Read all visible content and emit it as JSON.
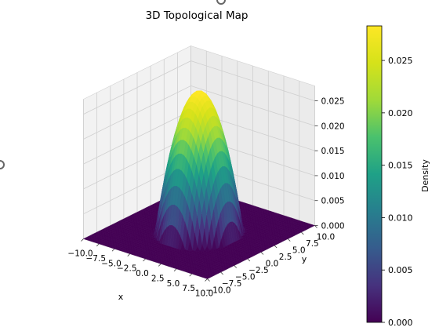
{
  "chart_data": {
    "type": "surface",
    "title": "3D Topological Map",
    "xlabel": "x",
    "ylabel": "y",
    "zlabel": "",
    "xlim": [
      -10,
      10
    ],
    "ylim": [
      -10,
      10
    ],
    "zlim": [
      0,
      0.028
    ],
    "x_ticks": [
      "−10.0",
      "−7.5",
      "−5.0",
      "−2.5",
      "0.0",
      "2.5",
      "5.0",
      "7.5",
      "10.0"
    ],
    "y_ticks": [
      "−10.0",
      "−7.5",
      "−5.0",
      "−2.5",
      "0.0",
      "2.5",
      "5.0",
      "7.5",
      "10.0"
    ],
    "z_ticks": [
      "0.000",
      "0.005",
      "0.010",
      "0.015",
      "0.020",
      "0.025"
    ],
    "surface": {
      "function": "paraboloid cap",
      "peak": 0.0283,
      "radius": 5.4
    },
    "colormap": "viridis",
    "colorbar": {
      "label": "Density",
      "range": [
        0,
        0.0283
      ],
      "ticks": [
        "0.000",
        "0.005",
        "0.010",
        "0.015",
        "0.020",
        "0.025"
      ]
    },
    "grid": true
  }
}
